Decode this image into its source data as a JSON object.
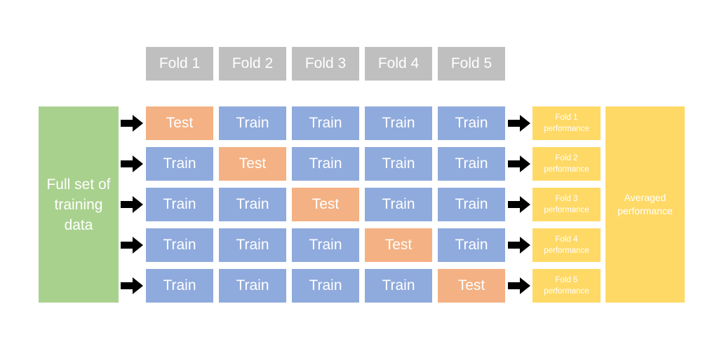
{
  "fold_headers": [
    "Fold 1",
    "Fold 2",
    "Fold 3",
    "Fold 4",
    "Fold 5"
  ],
  "full_set_label": "Full set of training data",
  "rows": [
    [
      "Test",
      "Train",
      "Train",
      "Train",
      "Train"
    ],
    [
      "Train",
      "Test",
      "Train",
      "Train",
      "Train"
    ],
    [
      "Train",
      "Train",
      "Test",
      "Train",
      "Train"
    ],
    [
      "Train",
      "Train",
      "Train",
      "Test",
      "Train"
    ],
    [
      "Train",
      "Train",
      "Train",
      "Train",
      "Test"
    ]
  ],
  "fold_performance": [
    "Fold 1 performance",
    "Fold 2 performance",
    "Fold 3 performance",
    "Fold 4 performance",
    "Fold 5 performance"
  ],
  "averaged_label": "Averaged performance",
  "colors": {
    "header": "#bfbfbf",
    "train": "#8faadc",
    "test": "#f4b183",
    "full_set": "#a9d18e",
    "performance": "#ffd966",
    "arrow": "#000000",
    "text": "#ffffff"
  }
}
